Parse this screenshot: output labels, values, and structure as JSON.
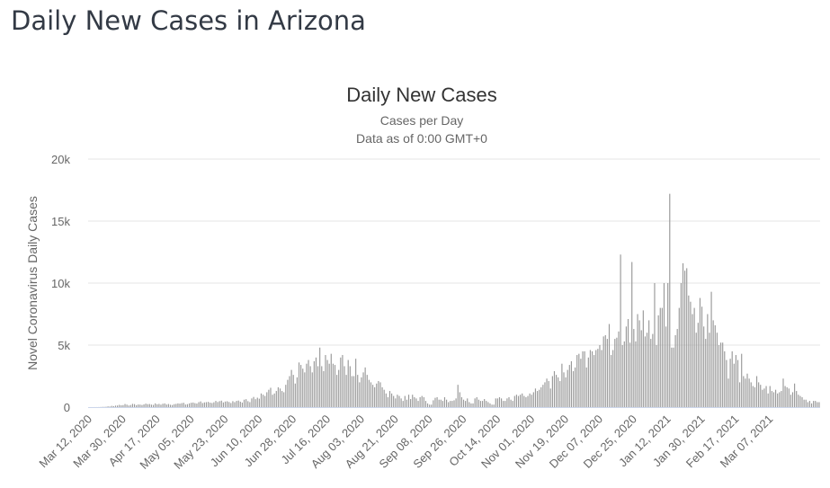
{
  "page": {
    "title": "Daily New Cases in Arizona"
  },
  "chart_data": {
    "type": "bar",
    "title": "Daily New Cases",
    "subtitle_lines": [
      "Cases per Day",
      "Data as of 0:00 GMT+0"
    ],
    "xlabel": "",
    "ylabel": "Novel Coronavirus Daily Cases",
    "ylim": [
      0,
      20000
    ],
    "yticks": [
      0,
      5000,
      10000,
      15000,
      20000
    ],
    "ytick_labels": [
      "0",
      "5k",
      "10k",
      "15k",
      "20k"
    ],
    "xtick_labels": [
      "Mar 12, 2020",
      "Mar 30, 2020",
      "Apr 17, 2020",
      "May 05, 2020",
      "May 23, 2020",
      "Jun 10, 2020",
      "Jun 28, 2020",
      "Jul 16, 2020",
      "Aug 03, 2020",
      "Aug 21, 2020",
      "Sep 08, 2020",
      "Sep 26, 2020",
      "Oct 14, 2020",
      "Nov 01, 2020",
      "Nov 19, 2020",
      "Dec 07, 2020",
      "Dec 25, 2020",
      "Jan 12, 2021",
      "Jan 30, 2021",
      "Feb 17, 2021",
      "Mar 07, 2021"
    ],
    "xtick_interval_days": 18,
    "start_date": "Mar 12, 2020",
    "grid": true,
    "colors": {
      "bar": "#999999",
      "grid": "#e6e6e6",
      "baseline": "#ccd6eb"
    },
    "series": [
      {
        "name": "Daily Cases",
        "values": [
          0,
          0,
          0,
          2,
          3,
          5,
          10,
          20,
          20,
          30,
          60,
          50,
          100,
          80,
          120,
          130,
          180,
          150,
          160,
          250,
          200,
          130,
          170,
          260,
          240,
          160,
          210,
          200,
          170,
          220,
          280,
          240,
          250,
          200,
          180,
          300,
          230,
          260,
          200,
          270,
          300,
          210,
          250,
          190,
          170,
          240,
          260,
          300,
          280,
          320,
          350,
          210,
          240,
          300,
          350,
          370,
          320,
          290,
          400,
          460,
          330,
          380,
          400,
          420,
          360,
          330,
          390,
          500,
          410,
          480,
          520,
          380,
          450,
          470,
          410,
          330,
          480,
          400,
          500,
          530,
          440,
          370,
          600,
          640,
          480,
          400,
          700,
          820,
          640,
          760,
          680,
          1100,
          1000,
          900,
          1200,
          1400,
          1560,
          1000,
          1100,
          1300,
          1600,
          1500,
          1300,
          1200,
          1800,
          2200,
          2500,
          3000,
          2600,
          1900,
          2400,
          3600,
          3400,
          3100,
          2800,
          3500,
          3800,
          3300,
          2800,
          3700,
          4000,
          3300,
          4800,
          3300,
          2900,
          4200,
          3800,
          3500,
          4300,
          3500,
          3400,
          2600,
          3000,
          4000,
          4200,
          3300,
          2600,
          3800,
          3300,
          2500,
          2500,
          3900,
          2600,
          2000,
          2400,
          2800,
          3200,
          2600,
          2200,
          2000,
          1800,
          1600,
          1900,
          2100,
          2000,
          1600,
          1400,
          1100,
          800,
          1300,
          1100,
          900,
          700,
          1000,
          900,
          700,
          500,
          900,
          600,
          1000,
          650,
          1000,
          800,
          700,
          500,
          800,
          900,
          800,
          500,
          300,
          200,
          200,
          550,
          750,
          800,
          600,
          600,
          500,
          800,
          600,
          400,
          500,
          500,
          550,
          700,
          1800,
          1200,
          800,
          600,
          500,
          700,
          400,
          300,
          300,
          700,
          800,
          600,
          500,
          500,
          650,
          500,
          400,
          300,
          200,
          200,
          700,
          700,
          800,
          700,
          500,
          500,
          700,
          800,
          600,
          500,
          900,
          1000,
          900,
          1000,
          1100,
          900,
          800,
          900,
          1100,
          1000,
          1200,
          1500,
          1300,
          1400,
          1600,
          1800,
          2000,
          2300,
          2100,
          1500,
          2500,
          2900,
          2600,
          2400,
          2100,
          3500,
          2800,
          2400,
          3000,
          3400,
          3700,
          2900,
          3200,
          4200,
          4300,
          3900,
          4500,
          4500,
          3200,
          4000,
          4600,
          4500,
          4200,
          4600,
          4700,
          5000,
          4600,
          5700,
          5800,
          5500,
          6700,
          4200,
          4600,
          5500,
          5600,
          6100,
          12300,
          5000,
          5300,
          6500,
          7100,
          5200,
          11700,
          6300,
          5300,
          7500,
          7000,
          6200,
          7800,
          5700,
          6000,
          7000,
          5500,
          5900,
          10000,
          5000,
          7400,
          8000,
          8000,
          10000,
          6500,
          10000,
          17200,
          4800,
          4800,
          5800,
          6300,
          8000,
          10000,
          11600,
          11000,
          11200,
          9000,
          8500,
          7500,
          8000,
          6000,
          6800,
          8800,
          8100,
          6500,
          5500,
          7500,
          6000,
          9300,
          7000,
          6600,
          6000,
          5000,
          5200,
          5200,
          4500,
          3800,
          2300,
          3900,
          4500,
          3500,
          4200,
          3800,
          2000,
          4300,
          2500,
          2300,
          2700,
          2300,
          2000,
          1700,
          1600,
          2500,
          2000,
          1800,
          1400,
          1500,
          1700,
          1100,
          1700,
          1300,
          1200,
          1400,
          1100,
          1200,
          1300,
          2300,
          1700,
          1600,
          1500,
          1000,
          1200,
          1900,
          1300,
          1000,
          900,
          800,
          600,
          600,
          400,
          500,
          300,
          500,
          500,
          400,
          400
        ]
      }
    ]
  }
}
